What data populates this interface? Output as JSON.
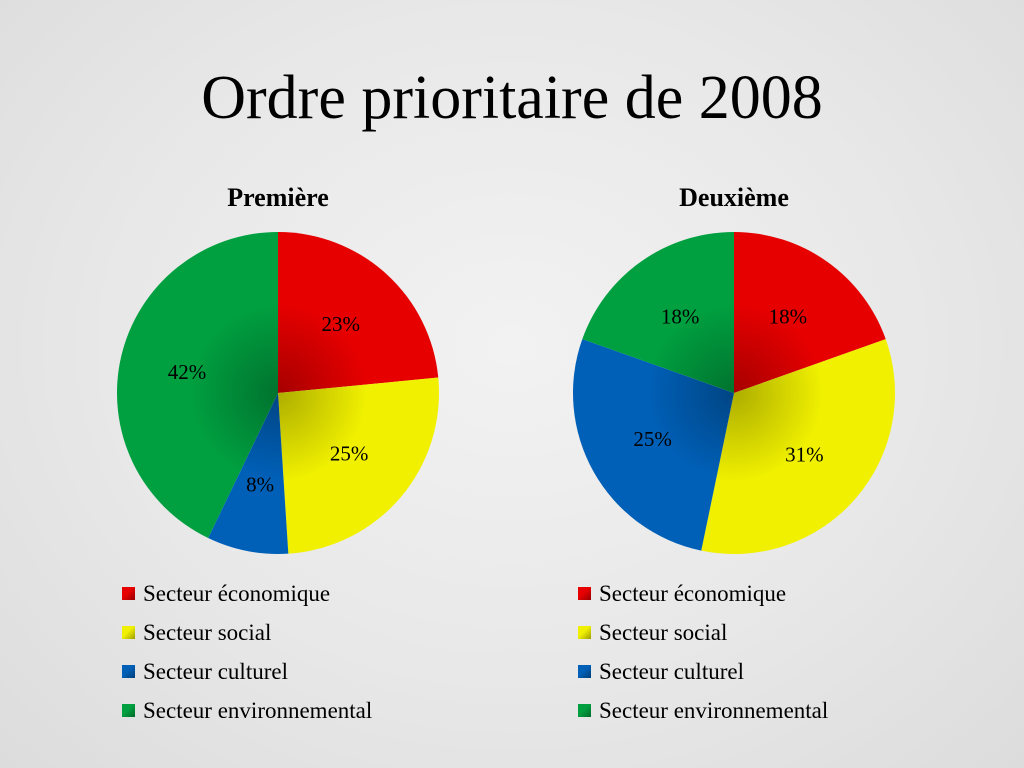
{
  "slide": {
    "title": "Ordre prioritaire de 2008"
  },
  "colors": {
    "economique": "#e60000",
    "social": "#f0f000",
    "culturel": "#0060b8",
    "environnemental": "#00a040"
  },
  "chart_data": [
    {
      "type": "pie",
      "title": "Première",
      "legend_position": "bottom",
      "categories": [
        "Secteur économique",
        "Secteur social",
        "Secteur culturel",
        "Secteur environnemental"
      ],
      "values": [
        23,
        25,
        8,
        42
      ],
      "data_labels": [
        "23%",
        "25%",
        "8%",
        "42%"
      ],
      "colors": [
        "#e60000",
        "#f0f000",
        "#0060b8",
        "#00a040"
      ]
    },
    {
      "type": "pie",
      "title": "Deuxième",
      "legend_position": "bottom",
      "categories": [
        "Secteur économique",
        "Secteur social",
        "Secteur culturel",
        "Secteur environnemental"
      ],
      "values": [
        18,
        31,
        25,
        18
      ],
      "data_labels": [
        "18%",
        "31%",
        "25%",
        "18%"
      ],
      "colors": [
        "#e60000",
        "#f0f000",
        "#0060b8",
        "#00a040"
      ]
    }
  ]
}
